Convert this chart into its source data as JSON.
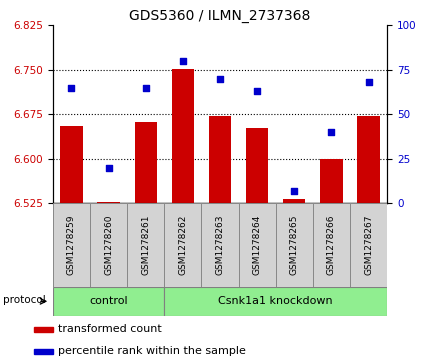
{
  "title": "GDS5360 / ILMN_2737368",
  "samples": [
    "GSM1278259",
    "GSM1278260",
    "GSM1278261",
    "GSM1278262",
    "GSM1278263",
    "GSM1278264",
    "GSM1278265",
    "GSM1278266",
    "GSM1278267"
  ],
  "transformed_count": [
    6.655,
    6.527,
    6.662,
    6.752,
    6.672,
    6.652,
    6.532,
    6.6,
    6.672
  ],
  "percentile_rank": [
    65,
    20,
    65,
    80,
    70,
    63,
    7,
    40,
    68
  ],
  "ylim_left": [
    6.525,
    6.825
  ],
  "ylim_right": [
    0,
    100
  ],
  "yticks_left": [
    6.525,
    6.6,
    6.675,
    6.75,
    6.825
  ],
  "yticks_right": [
    0,
    25,
    50,
    75,
    100
  ],
  "bar_color": "#cc0000",
  "dot_color": "#0000cc",
  "bar_bottom": 6.525,
  "control_count": 3,
  "knockdown_count": 6,
  "group_labels": [
    "control",
    "Csnk1a1 knockdown"
  ],
  "group_color": "#90ee90",
  "protocol_label": "protocol",
  "legend_items": [
    {
      "label": "transformed count",
      "color": "#cc0000"
    },
    {
      "label": "percentile rank within the sample",
      "color": "#0000cc"
    }
  ],
  "grid_yticks": [
    6.6,
    6.675,
    6.75
  ],
  "background_color": "#ffffff",
  "tick_label_color_left": "#cc0000",
  "tick_label_color_right": "#0000cc",
  "sample_box_color": "#d3d3d3",
  "sample_box_edge": "#888888"
}
